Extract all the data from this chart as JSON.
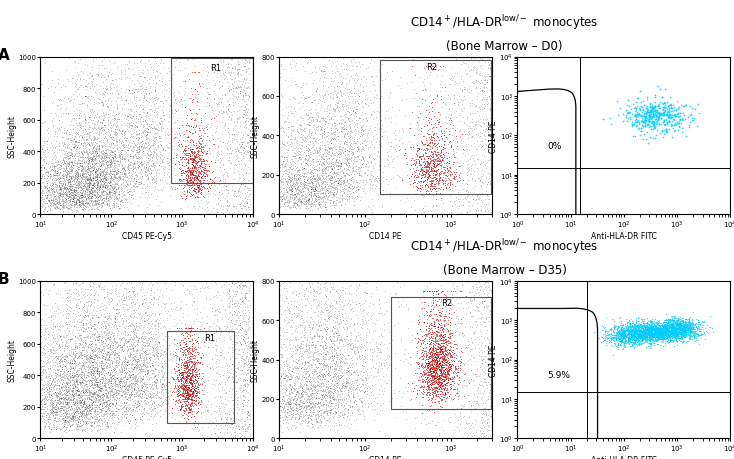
{
  "subtitle_top": "(Bone Marrow – D0)",
  "subtitle_bot": "(Bone Marrow – D35)",
  "label_A": "A",
  "label_B": "B",
  "scatter_red_color": "#cc0000",
  "scatter_cyan_color": "#00ccff",
  "gate_label_R1": "R1",
  "gate_label_R2": "R2",
  "percent_D0": "0%",
  "percent_D35": "5.9%",
  "xaxis_scatter1": "CD45 PE-Cy5",
  "yaxis_scatter1": "SSC-Height",
  "xaxis_scatter2": "CD14 PE",
  "yaxis_scatter2": "SSC-Height",
  "xaxis_flow": "Anti-HLA-DR FITC",
  "yaxis_flow": "CD14 PE",
  "background": "#ffffff"
}
